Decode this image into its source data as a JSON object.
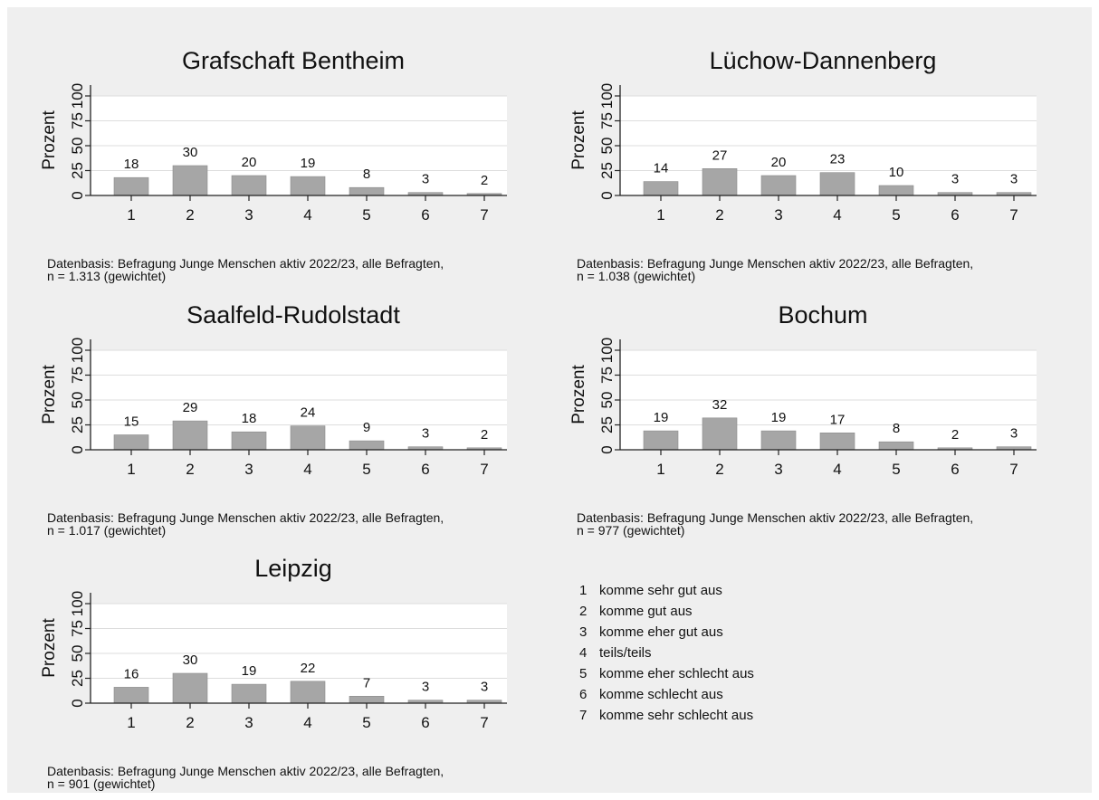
{
  "chart_data": [
    {
      "type": "bar",
      "title": "Grafschaft Bentheim",
      "ylabel": "Prozent",
      "xlabel": "",
      "ylim": [
        0,
        100
      ],
      "yticks": [
        "0",
        "25",
        "50",
        "75",
        "100"
      ],
      "categories": [
        "1",
        "2",
        "3",
        "4",
        "5",
        "6",
        "7"
      ],
      "values": [
        18,
        30,
        20,
        19,
        8,
        3,
        2
      ],
      "note": [
        "Datenbasis: Befragung Junge Menschen aktiv 2022/23, alle Befragten,",
        "n = 1.313 (gewichtet)"
      ]
    },
    {
      "type": "bar",
      "title": "Lüchow-Dannenberg",
      "ylabel": "Prozent",
      "xlabel": "",
      "ylim": [
        0,
        100
      ],
      "yticks": [
        "0",
        "25",
        "50",
        "75",
        "100"
      ],
      "categories": [
        "1",
        "2",
        "3",
        "4",
        "5",
        "6",
        "7"
      ],
      "values": [
        14,
        27,
        20,
        23,
        10,
        3,
        3
      ],
      "note": [
        "Datenbasis: Befragung Junge Menschen aktiv 2022/23, alle Befragten,",
        "n = 1.038 (gewichtet)"
      ]
    },
    {
      "type": "bar",
      "title": "Saalfeld-Rudolstadt",
      "ylabel": "Prozent",
      "xlabel": "",
      "ylim": [
        0,
        100
      ],
      "yticks": [
        "0",
        "25",
        "50",
        "75",
        "100"
      ],
      "categories": [
        "1",
        "2",
        "3",
        "4",
        "5",
        "6",
        "7"
      ],
      "values": [
        15,
        29,
        18,
        24,
        9,
        3,
        2
      ],
      "note": [
        "Datenbasis: Befragung Junge Menschen aktiv 2022/23, alle Befragten,",
        "n = 1.017 (gewichtet)"
      ]
    },
    {
      "type": "bar",
      "title": "Bochum",
      "ylabel": "Prozent",
      "xlabel": "",
      "ylim": [
        0,
        100
      ],
      "yticks": [
        "0",
        "25",
        "50",
        "75",
        "100"
      ],
      "categories": [
        "1",
        "2",
        "3",
        "4",
        "5",
        "6",
        "7"
      ],
      "values": [
        19,
        32,
        19,
        17,
        8,
        2,
        3
      ],
      "note": [
        "Datenbasis: Befragung Junge Menschen aktiv 2022/23, alle Befragten,",
        "n = 977 (gewichtet)"
      ]
    },
    {
      "type": "bar",
      "title": "Leipzig",
      "ylabel": "Prozent",
      "xlabel": "",
      "ylim": [
        0,
        100
      ],
      "yticks": [
        "0",
        "25",
        "50",
        "75",
        "100"
      ],
      "categories": [
        "1",
        "2",
        "3",
        "4",
        "5",
        "6",
        "7"
      ],
      "values": [
        16,
        30,
        19,
        22,
        7,
        3,
        3
      ],
      "note": [
        "Datenbasis: Befragung Junge Menschen aktiv 2022/23, alle Befragten,",
        "n = 901 (gewichtet)"
      ]
    }
  ],
  "legend": [
    {
      "code": "1",
      "label": "komme sehr gut aus"
    },
    {
      "code": "2",
      "label": "komme gut aus"
    },
    {
      "code": "3",
      "label": "komme eher gut aus"
    },
    {
      "code": "4",
      "label": "teils/teils"
    },
    {
      "code": "5",
      "label": "komme eher schlecht aus"
    },
    {
      "code": "6",
      "label": "komme schlecht aus"
    },
    {
      "code": "7",
      "label": "komme sehr schlecht aus"
    }
  ],
  "colors": {
    "bar": "#a6a6a6",
    "bar_stroke": "#8c8c8c",
    "axis": "#222222",
    "grid": "#dddddd",
    "plot_bg": "#ffffff",
    "figure_bg": "#efefef"
  }
}
